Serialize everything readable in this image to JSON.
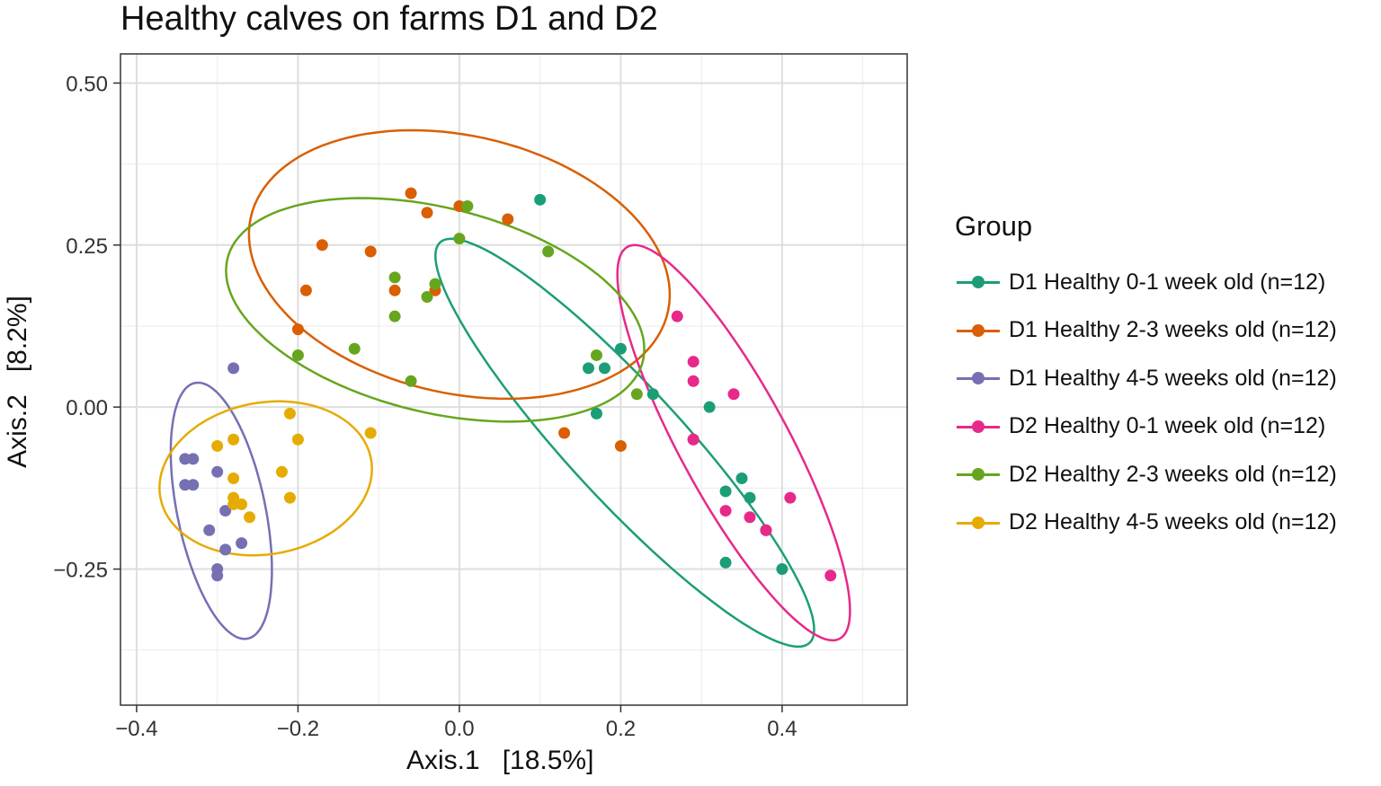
{
  "chart_data": {
    "type": "scatter",
    "title": "Healthy calves on farms D1 and D2",
    "xlabel": "Axis.1   [18.5%]",
    "ylabel": "Axis.2   [8.2%]",
    "xlim": [
      -0.42,
      0.555
    ],
    "ylim": [
      -0.46,
      0.545
    ],
    "xticks": [
      -0.4,
      -0.2,
      0.0,
      0.2,
      0.4
    ],
    "xtick_labels": [
      "−0.4",
      "−0.2",
      "0.0",
      "0.2",
      "0.4"
    ],
    "yticks": [
      -0.25,
      0.0,
      0.25,
      0.5
    ],
    "ytick_labels": [
      "−0.25",
      "0.00",
      "0.25",
      "0.50"
    ],
    "grid": true,
    "legend_title": "Group",
    "legend_position": "right",
    "series": [
      {
        "name": "D1 Healthy 0-1 week old (n=12)",
        "color": "#1b9e77",
        "points": [
          [
            0.1,
            0.32
          ],
          [
            0.16,
            0.06
          ],
          [
            0.18,
            0.06
          ],
          [
            0.2,
            0.09
          ],
          [
            0.17,
            -0.01
          ],
          [
            0.24,
            0.02
          ],
          [
            0.31,
            0.0
          ],
          [
            0.35,
            -0.11
          ],
          [
            0.33,
            -0.13
          ],
          [
            0.36,
            -0.14
          ],
          [
            0.33,
            -0.24
          ],
          [
            0.4,
            -0.25
          ]
        ],
        "ellipse": {
          "cx": 0.205,
          "cy": -0.055,
          "rx": 0.385,
          "ry": 0.077,
          "angle_deg": -54
        }
      },
      {
        "name": "D1 Healthy 2-3 weeks old (n=12)",
        "color": "#d95f02",
        "points": [
          [
            -0.06,
            0.33
          ],
          [
            0.0,
            0.31
          ],
          [
            -0.04,
            0.3
          ],
          [
            0.06,
            0.29
          ],
          [
            -0.17,
            0.25
          ],
          [
            -0.11,
            0.24
          ],
          [
            -0.19,
            0.18
          ],
          [
            -0.08,
            0.18
          ],
          [
            -0.03,
            0.18
          ],
          [
            -0.2,
            0.12
          ],
          [
            0.13,
            -0.04
          ],
          [
            0.2,
            -0.06
          ]
        ],
        "ellipse": {
          "cx": 0.0,
          "cy": 0.22,
          "rx": 0.27,
          "ry": 0.195,
          "angle_deg": -22
        }
      },
      {
        "name": "D1 Healthy 4-5 weeks old (n=12)",
        "color": "#7570b3",
        "points": [
          [
            -0.28,
            0.06
          ],
          [
            -0.34,
            -0.08
          ],
          [
            -0.33,
            -0.08
          ],
          [
            -0.3,
            -0.1
          ],
          [
            -0.34,
            -0.12
          ],
          [
            -0.33,
            -0.12
          ],
          [
            -0.29,
            -0.16
          ],
          [
            -0.31,
            -0.19
          ],
          [
            -0.27,
            -0.21
          ],
          [
            -0.29,
            -0.22
          ],
          [
            -0.3,
            -0.25
          ],
          [
            -0.3,
            -0.26
          ]
        ],
        "ellipse": {
          "cx": -0.295,
          "cy": -0.16,
          "rx": 0.2,
          "ry": 0.055,
          "angle_deg": -81
        }
      },
      {
        "name": "D2 Healthy 0-1 week old (n=12)",
        "color": "#e7298a",
        "points": [
          [
            0.27,
            0.14
          ],
          [
            0.29,
            0.07
          ],
          [
            0.29,
            0.04
          ],
          [
            0.34,
            0.02
          ],
          [
            0.29,
            -0.05
          ],
          [
            0.29,
            -0.05
          ],
          [
            0.33,
            -0.16
          ],
          [
            0.36,
            -0.17
          ],
          [
            0.38,
            -0.19
          ],
          [
            0.38,
            -0.19
          ],
          [
            0.41,
            -0.14
          ],
          [
            0.46,
            -0.26
          ]
        ],
        "ellipse": {
          "cx": 0.34,
          "cy": -0.055,
          "rx": 0.33,
          "ry": 0.07,
          "angle_deg": -67
        }
      },
      {
        "name": "D2 Healthy 2-3 weeks old (n=12)",
        "color": "#66a61e",
        "points": [
          [
            0.01,
            0.31
          ],
          [
            0.0,
            0.26
          ],
          [
            0.11,
            0.24
          ],
          [
            -0.08,
            0.2
          ],
          [
            -0.03,
            0.19
          ],
          [
            -0.04,
            0.17
          ],
          [
            -0.08,
            0.14
          ],
          [
            -0.13,
            0.09
          ],
          [
            -0.2,
            0.08
          ],
          [
            -0.06,
            0.04
          ],
          [
            0.17,
            0.08
          ],
          [
            0.22,
            0.02
          ]
        ],
        "ellipse": {
          "cx": -0.03,
          "cy": 0.15,
          "rx": 0.27,
          "ry": 0.155,
          "angle_deg": -20
        }
      },
      {
        "name": "D2 Healthy 4-5 weeks old (n=12)",
        "color": "#e6ab02",
        "points": [
          [
            -0.21,
            -0.01
          ],
          [
            -0.2,
            -0.05
          ],
          [
            -0.11,
            -0.04
          ],
          [
            -0.28,
            -0.05
          ],
          [
            -0.3,
            -0.06
          ],
          [
            -0.22,
            -0.1
          ],
          [
            -0.28,
            -0.11
          ],
          [
            -0.21,
            -0.14
          ],
          [
            -0.28,
            -0.14
          ],
          [
            -0.27,
            -0.15
          ],
          [
            -0.28,
            -0.15
          ],
          [
            -0.26,
            -0.17
          ]
        ],
        "ellipse": {
          "cx": -0.24,
          "cy": -0.11,
          "rx": 0.135,
          "ry": 0.115,
          "angle_deg": 25
        }
      }
    ]
  }
}
